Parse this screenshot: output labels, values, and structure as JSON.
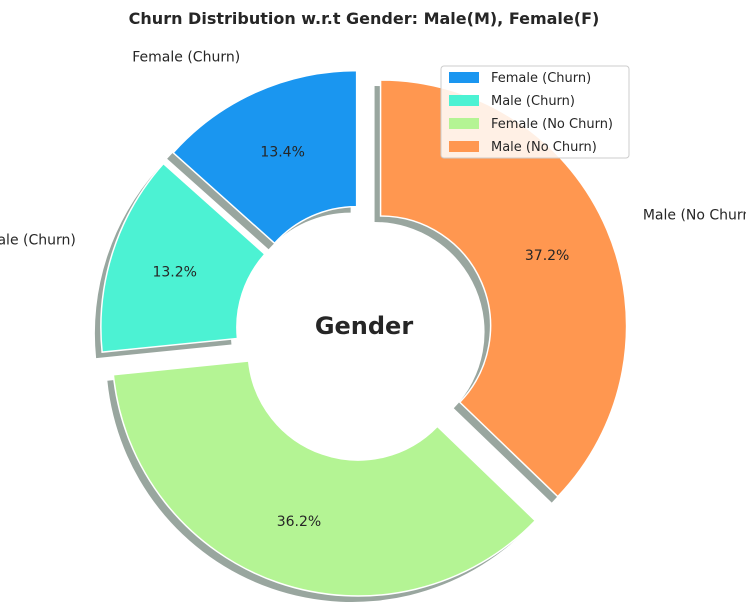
{
  "chart_data": {
    "type": "pie",
    "title": "Churn Distribution w.r.t Gender: Male(M), Female(F)",
    "center_label": "Gender",
    "donut": true,
    "shadow": true,
    "start_angle_deg": 90,
    "direction": "counterclockwise",
    "legend_placement": "top-right",
    "slices": [
      {
        "label": "Female (Churn)",
        "value": 13.4,
        "pct_label": "13.4%",
        "color": "#1a96f0",
        "exploded": true
      },
      {
        "label": "Male (Churn)",
        "value": 13.2,
        "pct_label": "13.2%",
        "color": "#4cf2d3",
        "exploded": true
      },
      {
        "label": "Female (No Churn)",
        "value": 36.2,
        "pct_label": "36.2%",
        "color": "#b4f494",
        "exploded": true
      },
      {
        "label": "Male (No Churn)",
        "value": 37.2,
        "pct_label": "37.2%",
        "color": "#ff9750",
        "exploded": true
      }
    ]
  }
}
